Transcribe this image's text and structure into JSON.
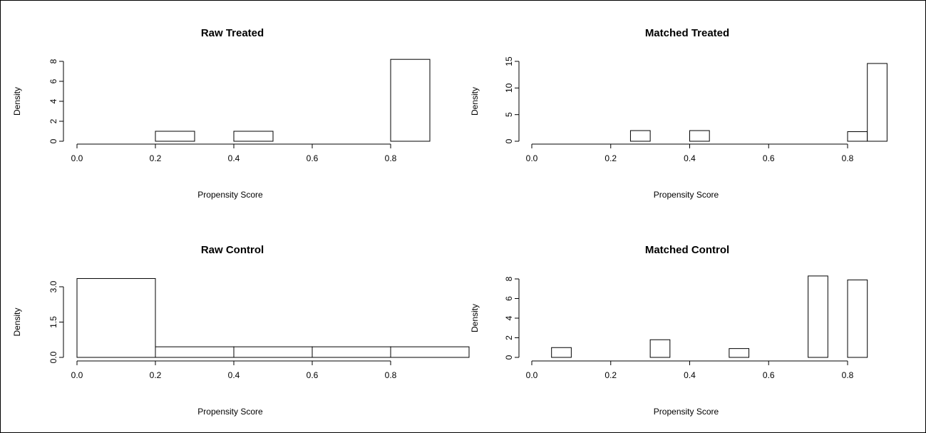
{
  "chart_data": [
    {
      "type": "bar",
      "title": "Raw Treated",
      "xlabel": "Propensity Score",
      "ylabel": "Density",
      "xlim": [
        0.0,
        0.9
      ],
      "ylim": [
        0,
        8
      ],
      "xticks": [
        "0.0",
        "0.2",
        "0.4",
        "0.6",
        "0.8"
      ],
      "yticks": [
        "0",
        "2",
        "4",
        "6",
        "8"
      ],
      "bins": [
        {
          "start": 0.2,
          "end": 0.3,
          "value": 1
        },
        {
          "start": 0.3,
          "end": 0.4,
          "value": 0
        },
        {
          "start": 0.4,
          "end": 0.5,
          "value": 1
        },
        {
          "start": 0.5,
          "end": 0.6,
          "value": 0
        },
        {
          "start": 0.6,
          "end": 0.7,
          "value": 0
        },
        {
          "start": 0.7,
          "end": 0.8,
          "value": 0
        },
        {
          "start": 0.8,
          "end": 0.9,
          "value": 8.2
        }
      ]
    },
    {
      "type": "bar",
      "title": "Matched Treated",
      "xlabel": "Propensity Score",
      "ylabel": "Density",
      "xlim": [
        0.0,
        0.9
      ],
      "ylim": [
        0,
        15
      ],
      "xticks": [
        "0.0",
        "0.2",
        "0.4",
        "0.6",
        "0.8"
      ],
      "yticks": [
        "0",
        "5",
        "10",
        "15"
      ],
      "bins": [
        {
          "start": 0.25,
          "end": 0.3,
          "value": 2
        },
        {
          "start": 0.3,
          "end": 0.35,
          "value": 0
        },
        {
          "start": 0.35,
          "end": 0.4,
          "value": 0
        },
        {
          "start": 0.4,
          "end": 0.45,
          "value": 2
        },
        {
          "start": 0.45,
          "end": 0.5,
          "value": 0
        },
        {
          "start": 0.5,
          "end": 0.55,
          "value": 0
        },
        {
          "start": 0.55,
          "end": 0.6,
          "value": 0
        },
        {
          "start": 0.6,
          "end": 0.65,
          "value": 0
        },
        {
          "start": 0.65,
          "end": 0.7,
          "value": 0
        },
        {
          "start": 0.7,
          "end": 0.75,
          "value": 0
        },
        {
          "start": 0.75,
          "end": 0.8,
          "value": 0
        },
        {
          "start": 0.8,
          "end": 0.85,
          "value": 1.8
        },
        {
          "start": 0.85,
          "end": 0.9,
          "value": 14.6
        }
      ]
    },
    {
      "type": "bar",
      "title": "Raw Control",
      "xlabel": "Propensity Score",
      "ylabel": "Density",
      "xlim": [
        0.0,
        0.9
      ],
      "ylim": [
        0,
        3.0
      ],
      "xticks": [
        "0.0",
        "0.2",
        "0.4",
        "0.6",
        "0.8"
      ],
      "yticks": [
        "0.0",
        "1.5",
        "3.0"
      ],
      "bins": [
        {
          "start": 0.0,
          "end": 0.2,
          "value": 3.35
        },
        {
          "start": 0.2,
          "end": 0.4,
          "value": 0.45
        },
        {
          "start": 0.4,
          "end": 0.6,
          "value": 0.45
        },
        {
          "start": 0.6,
          "end": 0.8,
          "value": 0.45
        },
        {
          "start": 0.8,
          "end": 1.0,
          "value": 0.45
        }
      ]
    },
    {
      "type": "bar",
      "title": "Matched Control",
      "xlabel": "Propensity Score",
      "ylabel": "Density",
      "xlim": [
        0.0,
        0.85
      ],
      "ylim": [
        0,
        8
      ],
      "xticks": [
        "0.0",
        "0.2",
        "0.4",
        "0.6",
        "0.8"
      ],
      "yticks": [
        "0",
        "2",
        "4",
        "6",
        "8"
      ],
      "bins": [
        {
          "start": 0.05,
          "end": 0.1,
          "value": 1
        },
        {
          "start": 0.1,
          "end": 0.15,
          "value": 0
        },
        {
          "start": 0.15,
          "end": 0.2,
          "value": 0
        },
        {
          "start": 0.2,
          "end": 0.25,
          "value": 0
        },
        {
          "start": 0.25,
          "end": 0.3,
          "value": 0
        },
        {
          "start": 0.3,
          "end": 0.35,
          "value": 1.8
        },
        {
          "start": 0.35,
          "end": 0.4,
          "value": 0
        },
        {
          "start": 0.4,
          "end": 0.45,
          "value": 0
        },
        {
          "start": 0.45,
          "end": 0.5,
          "value": 0
        },
        {
          "start": 0.5,
          "end": 0.55,
          "value": 0.9
        },
        {
          "start": 0.55,
          "end": 0.6,
          "value": 0
        },
        {
          "start": 0.6,
          "end": 0.65,
          "value": 0
        },
        {
          "start": 0.65,
          "end": 0.7,
          "value": 0
        },
        {
          "start": 0.7,
          "end": 0.75,
          "value": 8.3
        },
        {
          "start": 0.75,
          "end": 0.8,
          "value": 0
        },
        {
          "start": 0.8,
          "end": 0.85,
          "value": 7.9
        }
      ]
    }
  ]
}
